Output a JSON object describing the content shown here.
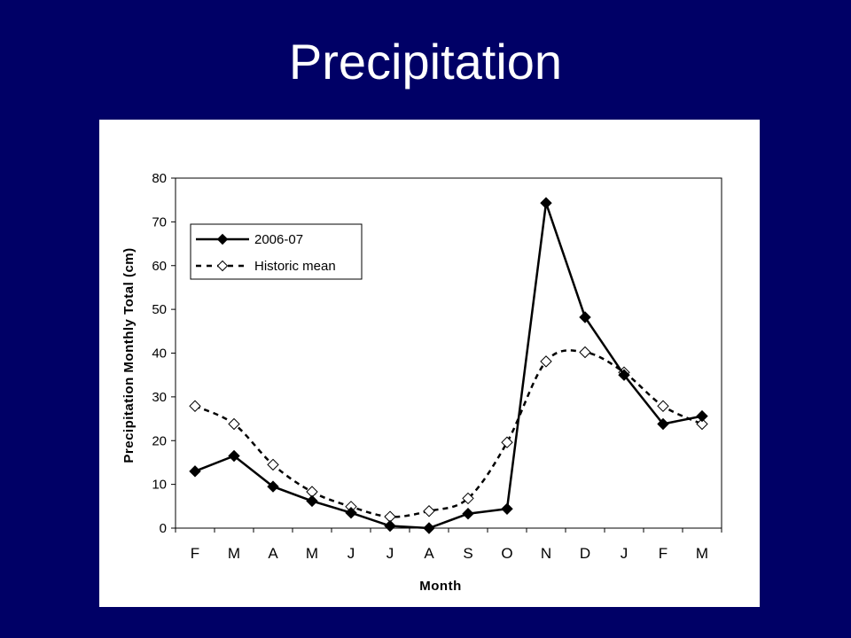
{
  "slide": {
    "title": "Precipitation"
  },
  "chart_data": {
    "type": "line",
    "title": "",
    "xlabel": "Month",
    "ylabel": "Precipitation Monthly Total (cm)",
    "categories": [
      "F",
      "M",
      "A",
      "M",
      "J",
      "J",
      "A",
      "S",
      "O",
      "N",
      "D",
      "J",
      "F",
      "M"
    ],
    "ylim": [
      0,
      80
    ],
    "yticks": [
      0,
      10,
      20,
      30,
      40,
      50,
      60,
      70,
      80
    ],
    "grid": false,
    "legend_position": "top-left",
    "series": [
      {
        "name": "2006-07",
        "style": "solid",
        "marker": "filled-diamond",
        "color": "#000000",
        "values": [
          13,
          16.5,
          9.5,
          6.2,
          3.5,
          0.5,
          0,
          3.3,
          4.4,
          74.3,
          48.2,
          35,
          23.8,
          25.6
        ]
      },
      {
        "name": "Historic mean",
        "style": "dashed",
        "marker": "hollow-diamond",
        "color": "#000000",
        "values": [
          27.9,
          23.8,
          14.5,
          8.3,
          4.9,
          2.6,
          3.9,
          6.8,
          19.6,
          38.1,
          40.2,
          35.6,
          27.9,
          23.8
        ]
      }
    ]
  }
}
